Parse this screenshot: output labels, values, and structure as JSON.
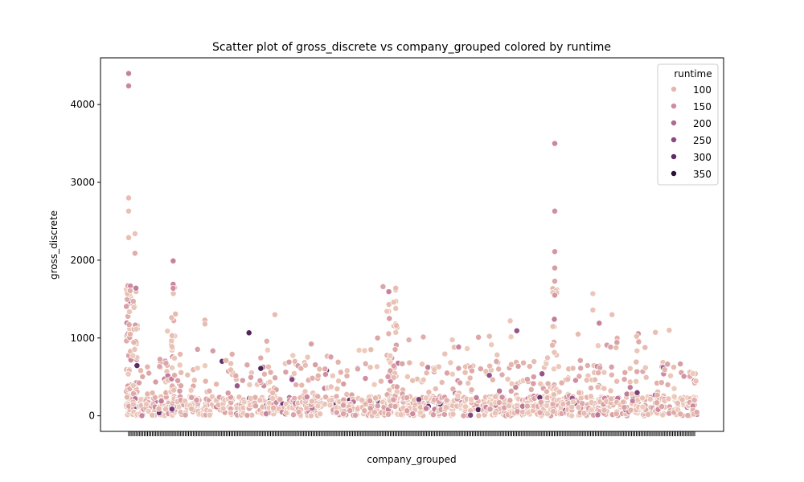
{
  "chart_data": {
    "type": "scatter",
    "title": "Scatter plot of gross_discrete vs company_grouped colored by runtime",
    "xlabel": "company_grouped",
    "ylabel": "gross_discrete",
    "ylim": [
      -200,
      4600
    ],
    "yticks": [
      0,
      1000,
      2000,
      3000,
      4000
    ],
    "grid": false,
    "category_count": 90,
    "legend": {
      "title": "runtime",
      "placement": "top-right",
      "entries": [
        {
          "label": "100",
          "color": "#e6b8ad"
        },
        {
          "label": "150",
          "color": "#cf8da0"
        },
        {
          "label": "200",
          "color": "#b06a93"
        },
        {
          "label": "250",
          "color": "#8b4a83"
        },
        {
          "label": "300",
          "color": "#5e2d66"
        },
        {
          "label": "350",
          "color": "#2b1236"
        }
      ]
    },
    "colormap": {
      "min": 80,
      "max": 370,
      "stops": [
        "#efd1c2",
        "#e6b8ad",
        "#cf8da0",
        "#b06a93",
        "#8b4a83",
        "#5e2d66",
        "#2b1236"
      ]
    },
    "highlight_points": [
      {
        "category": 0,
        "y": 4400,
        "runtime": 190
      },
      {
        "category": 0,
        "y": 4240,
        "runtime": 185
      },
      {
        "category": 0,
        "y": 2800,
        "runtime": 120
      },
      {
        "category": 0,
        "y": 2630,
        "runtime": 110
      },
      {
        "category": 1,
        "y": 2340,
        "runtime": 105
      },
      {
        "category": 0,
        "y": 2290,
        "runtime": 115
      },
      {
        "category": 1,
        "y": 2090,
        "runtime": 140
      },
      {
        "category": 7,
        "y": 1990,
        "runtime": 190
      },
      {
        "category": 7,
        "y": 1690,
        "runtime": 185
      },
      {
        "category": 7,
        "y": 1640,
        "runtime": 175
      },
      {
        "category": 67,
        "y": 3500,
        "runtime": 185
      },
      {
        "category": 67,
        "y": 2630,
        "runtime": 175
      },
      {
        "category": 67,
        "y": 2110,
        "runtime": 165
      },
      {
        "category": 67,
        "y": 1900,
        "runtime": 160
      },
      {
        "category": 67,
        "y": 1730,
        "runtime": 150
      },
      {
        "category": 67,
        "y": 1550,
        "runtime": 165
      },
      {
        "category": 40,
        "y": 1660,
        "runtime": 150
      },
      {
        "category": 42,
        "y": 1640,
        "runtime": 120
      },
      {
        "category": 42,
        "y": 1380,
        "runtime": 105
      },
      {
        "category": 23,
        "y": 1300,
        "runtime": 120
      },
      {
        "category": 73,
        "y": 1570,
        "runtime": 100
      },
      {
        "category": 73,
        "y": 1360,
        "runtime": 105
      },
      {
        "category": 76,
        "y": 1300,
        "runtime": 110
      },
      {
        "category": 74,
        "y": 1190,
        "runtime": 190
      },
      {
        "category": 12,
        "y": 1230,
        "runtime": 130
      },
      {
        "category": 12,
        "y": 1180,
        "runtime": 120
      },
      {
        "category": 41,
        "y": 1250,
        "runtime": 160
      },
      {
        "category": 55,
        "y": 1010,
        "runtime": 150
      },
      {
        "category": 60,
        "y": 1220,
        "runtime": 100
      },
      {
        "category": 85,
        "y": 1100,
        "runtime": 105
      },
      {
        "category": 65,
        "y": 540,
        "runtime": 260
      }
    ]
  }
}
